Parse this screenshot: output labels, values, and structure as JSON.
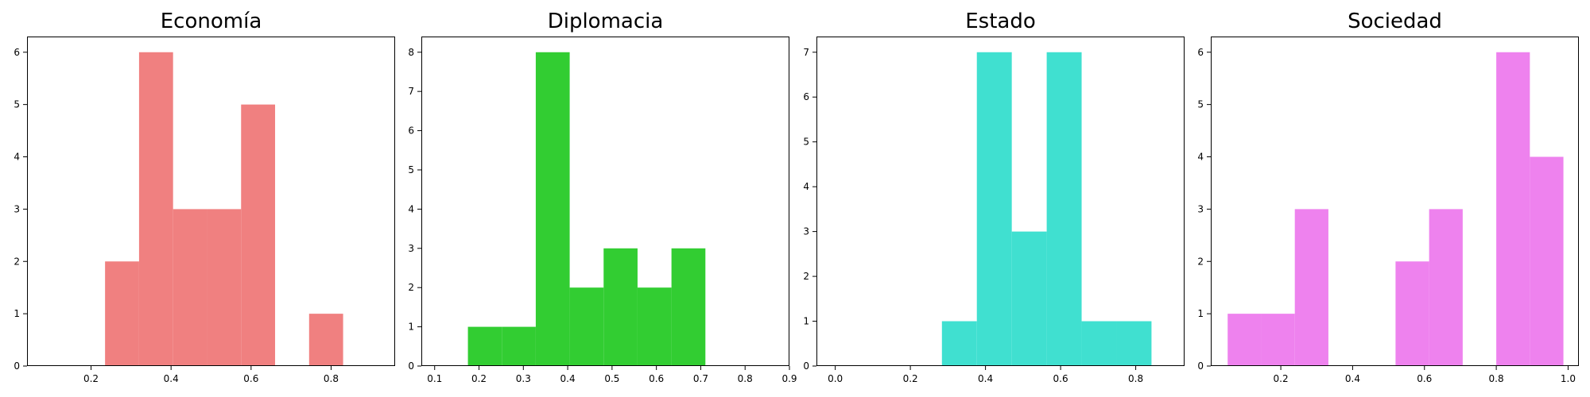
{
  "chart_data": [
    {
      "type": "bar",
      "title": "Economía",
      "color": "#f08080",
      "xlim": [
        0.04,
        0.96
      ],
      "ylim": [
        0,
        6.3
      ],
      "xticks": [
        0.2,
        0.4,
        0.6,
        0.8
      ],
      "yticks": [
        0,
        1,
        2,
        3,
        4,
        5,
        6
      ],
      "bins": [
        {
          "x0": 0.235,
          "x1": 0.32,
          "count": 2
        },
        {
          "x0": 0.32,
          "x1": 0.405,
          "count": 6
        },
        {
          "x0": 0.405,
          "x1": 0.49,
          "count": 3
        },
        {
          "x0": 0.49,
          "x1": 0.575,
          "count": 3
        },
        {
          "x0": 0.575,
          "x1": 0.66,
          "count": 5
        },
        {
          "x0": 0.66,
          "x1": 0.745,
          "count": 0
        },
        {
          "x0": 0.745,
          "x1": 0.83,
          "count": 1
        }
      ]
    },
    {
      "type": "bar",
      "title": "Diplomacia",
      "color": "#32cd32",
      "xlim": [
        0.07,
        0.9
      ],
      "ylim": [
        0,
        8.4
      ],
      "xticks": [
        0.1,
        0.2,
        0.3,
        0.4,
        0.5,
        0.6,
        0.7,
        0.8,
        0.9
      ],
      "yticks": [
        0,
        1,
        2,
        3,
        4,
        5,
        6,
        7,
        8
      ],
      "bins": [
        {
          "x0": 0.175,
          "x1": 0.2515,
          "count": 1
        },
        {
          "x0": 0.2515,
          "x1": 0.328,
          "count": 1
        },
        {
          "x0": 0.328,
          "x1": 0.4045,
          "count": 8
        },
        {
          "x0": 0.4045,
          "x1": 0.481,
          "count": 2
        },
        {
          "x0": 0.481,
          "x1": 0.5575,
          "count": 3
        },
        {
          "x0": 0.5575,
          "x1": 0.634,
          "count": 2
        },
        {
          "x0": 0.634,
          "x1": 0.7105,
          "count": 3
        }
      ]
    },
    {
      "type": "bar",
      "title": "Estado",
      "color": "#40e0d0",
      "xlim": [
        -0.05,
        0.93
      ],
      "ylim": [
        0,
        7.35
      ],
      "xticks": [
        0.0,
        0.2,
        0.4,
        0.6,
        0.8
      ],
      "yticks": [
        0,
        1,
        2,
        3,
        4,
        5,
        6,
        7
      ],
      "bins": [
        {
          "x0": 0.284,
          "x1": 0.377,
          "count": 1
        },
        {
          "x0": 0.377,
          "x1": 0.47,
          "count": 7
        },
        {
          "x0": 0.47,
          "x1": 0.563,
          "count": 3
        },
        {
          "x0": 0.563,
          "x1": 0.656,
          "count": 7
        },
        {
          "x0": 0.656,
          "x1": 0.749,
          "count": 1
        },
        {
          "x0": 0.749,
          "x1": 0.842,
          "count": 1
        }
      ]
    },
    {
      "type": "bar",
      "title": "Sociedad",
      "color": "#ee82ee",
      "xlim": [
        0.005,
        1.03
      ],
      "ylim": [
        0,
        6.3
      ],
      "xticks": [
        0.2,
        0.4,
        0.6,
        0.8,
        1.0
      ],
      "yticks": [
        0,
        1,
        2,
        3,
        4,
        5,
        6
      ],
      "bins": [
        {
          "x0": 0.052,
          "x1": 0.1455,
          "count": 1
        },
        {
          "x0": 0.1455,
          "x1": 0.239,
          "count": 1
        },
        {
          "x0": 0.239,
          "x1": 0.3325,
          "count": 3
        },
        {
          "x0": 0.3325,
          "x1": 0.426,
          "count": 0
        },
        {
          "x0": 0.426,
          "x1": 0.5195,
          "count": 0
        },
        {
          "x0": 0.5195,
          "x1": 0.613,
          "count": 2
        },
        {
          "x0": 0.613,
          "x1": 0.7065,
          "count": 3
        },
        {
          "x0": 0.7065,
          "x1": 0.8,
          "count": 0
        },
        {
          "x0": 0.8,
          "x1": 0.8935,
          "count": 6
        },
        {
          "x0": 0.8935,
          "x1": 0.987,
          "count": 4
        }
      ]
    }
  ]
}
